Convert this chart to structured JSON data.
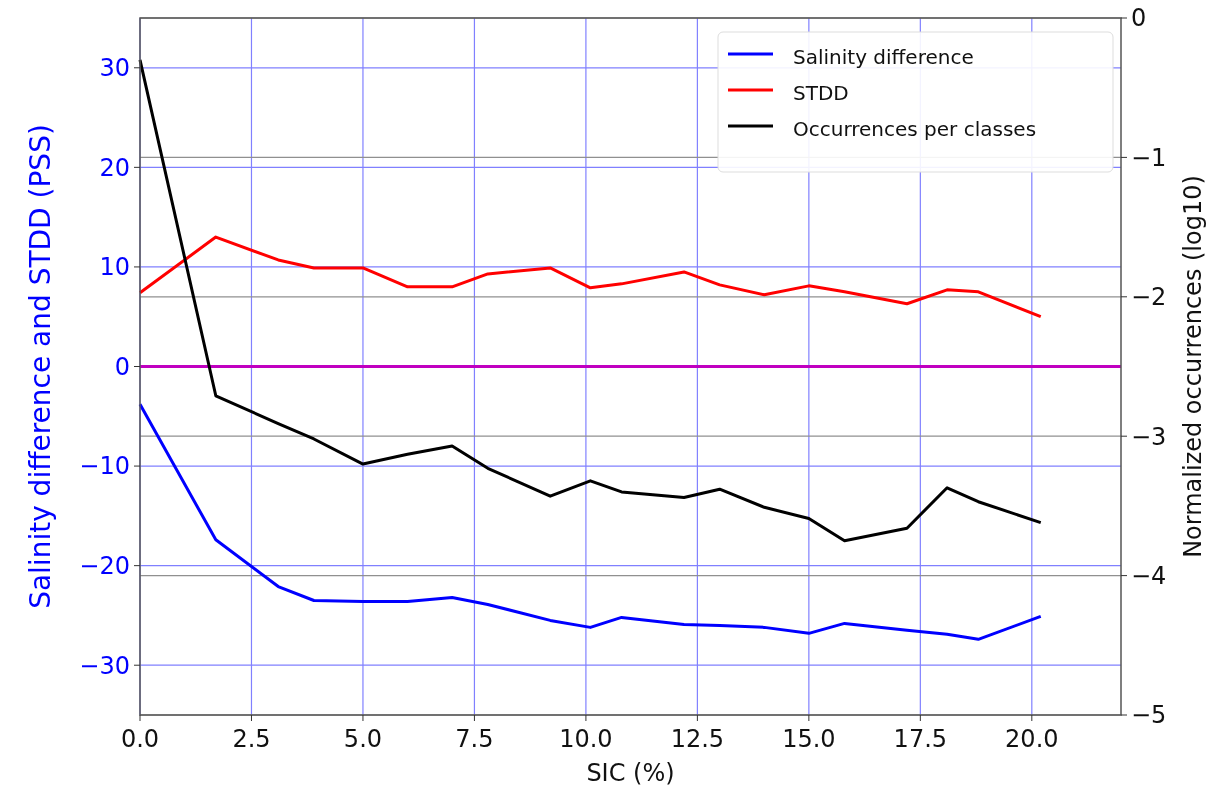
{
  "chart_data": {
    "type": "line",
    "xlabel": "SIC (%)",
    "ylabel": "Salinity difference and STDD (PSS)",
    "y2label": "Normalized occurrences (log10)",
    "x": [
      0,
      1.7,
      3.1,
      3.9,
      5.0,
      6.0,
      7.0,
      7.8,
      9.2,
      10.1,
      10.8,
      12.2,
      13.0,
      14.0,
      15.0,
      15.8,
      17.2,
      18.1,
      18.8,
      20.2
    ],
    "series": [
      {
        "name": "Salinity difference",
        "color": "#0000ff",
        "values": [
          -3.8,
          -17.4,
          -22.1,
          -23.5,
          -23.6,
          -23.6,
          -23.2,
          -23.9,
          -25.5,
          -26.2,
          -25.2,
          -25.9,
          -26.0,
          -26.2,
          -26.8,
          -25.8,
          -26.5,
          -26.9,
          -27.4,
          -25.1
        ]
      },
      {
        "name": "STDD",
        "color": "#ff0000",
        "values": [
          7.4,
          13.0,
          10.7,
          9.9,
          9.9,
          8.0,
          8.0,
          9.3,
          9.9,
          7.9,
          8.3,
          9.5,
          8.2,
          7.2,
          8.1,
          7.5,
          6.3,
          7.7,
          7.5,
          5.0
        ]
      },
      {
        "name": "Occurrences per classes",
        "color": "#000000",
        "axis": "y2",
        "values": [
          -0.3,
          -2.71,
          -2.91,
          -3.02,
          -3.2,
          -3.13,
          -3.07,
          -3.23,
          -3.43,
          -3.32,
          -3.4,
          -3.44,
          -3.38,
          -3.51,
          -3.59,
          -3.75,
          -3.66,
          -3.37,
          -3.47,
          -3.62
        ]
      }
    ],
    "xlim": [
      0,
      22
    ],
    "xticks": [
      {
        "value": 0,
        "label": "0.0"
      },
      {
        "value": 2.5,
        "label": "2.5"
      },
      {
        "value": 5,
        "label": "5.0"
      },
      {
        "value": 7.5,
        "label": "7.5"
      },
      {
        "value": 10,
        "label": "10.0"
      },
      {
        "value": 12.5,
        "label": "12.5"
      },
      {
        "value": 15,
        "label": "15.0"
      },
      {
        "value": 17.5,
        "label": "17.5"
      },
      {
        "value": 20,
        "label": "20.0"
      }
    ],
    "ylim": [
      -35,
      35
    ],
    "yticks": [
      {
        "value": -30,
        "label": "−30"
      },
      {
        "value": -20,
        "label": "−20"
      },
      {
        "value": -10,
        "label": "−10"
      },
      0,
      10,
      20,
      30
    ],
    "y2lim": [
      -5,
      0
    ],
    "y2ticks": [
      {
        "value": -5,
        "label": "−5"
      },
      {
        "value": -4,
        "label": "−4"
      },
      {
        "value": -3,
        "label": "−3"
      },
      {
        "value": -2,
        "label": "−2"
      },
      {
        "value": -1,
        "label": "−1"
      },
      0
    ],
    "ref_lines": [
      {
        "axis": "y",
        "value": 0,
        "color": "#c000c0"
      }
    ],
    "grid": true,
    "legend": "top right",
    "marker": "none",
    "line_style": "solid"
  }
}
